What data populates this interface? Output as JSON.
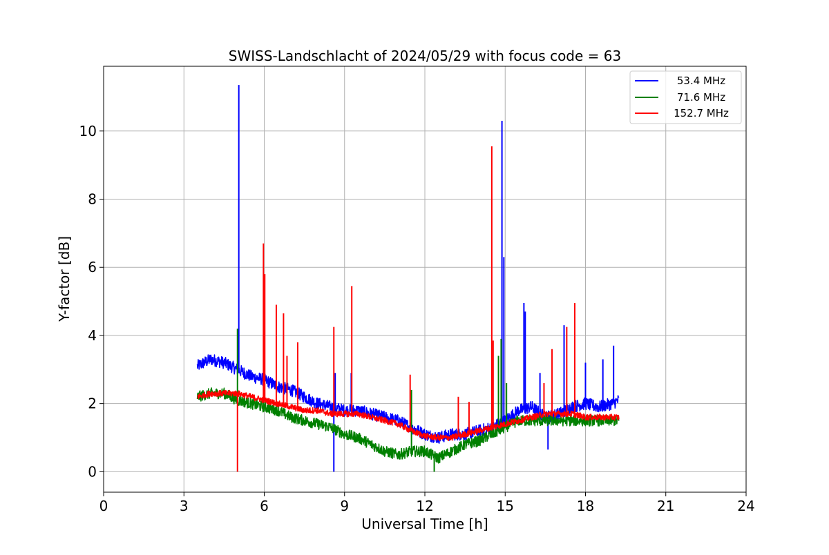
{
  "chart_data": {
    "type": "line",
    "title": "SWISS-Landschlacht of 2024/05/29 with focus code = 63",
    "xlabel": "Universal Time [h]",
    "ylabel": "Y-factor [dB]",
    "xlim": [
      0,
      24
    ],
    "ylim": [
      -0.6,
      11.9
    ],
    "xticks": [
      0,
      3,
      6,
      9,
      12,
      15,
      18,
      21,
      24
    ],
    "yticks": [
      0,
      2,
      4,
      6,
      8,
      10
    ],
    "grid": true,
    "legend_position": "top-right",
    "series": [
      {
        "name": "53.4 MHz",
        "color": "#0000ff",
        "baseline": [
          [
            3.5,
            3.1
          ],
          [
            4.0,
            3.3
          ],
          [
            4.5,
            3.2
          ],
          [
            5.0,
            3.0
          ],
          [
            5.5,
            2.8
          ],
          [
            6.0,
            2.7
          ],
          [
            6.5,
            2.5
          ],
          [
            7.0,
            2.4
          ],
          [
            7.5,
            2.2
          ],
          [
            8.0,
            2.0
          ],
          [
            8.5,
            1.9
          ],
          [
            9.0,
            1.8
          ],
          [
            9.5,
            1.8
          ],
          [
            10.0,
            1.7
          ],
          [
            10.5,
            1.6
          ],
          [
            11.0,
            1.5
          ],
          [
            11.5,
            1.3
          ],
          [
            12.0,
            1.1
          ],
          [
            12.5,
            1.0
          ],
          [
            13.0,
            1.1
          ],
          [
            13.5,
            1.1
          ],
          [
            14.0,
            1.2
          ],
          [
            14.5,
            1.3
          ],
          [
            15.0,
            1.5
          ],
          [
            15.5,
            1.8
          ],
          [
            16.0,
            1.9
          ],
          [
            16.5,
            1.6
          ],
          [
            17.0,
            1.7
          ],
          [
            17.5,
            1.9
          ],
          [
            18.0,
            2.0
          ],
          [
            18.5,
            1.9
          ],
          [
            19.0,
            2.0
          ],
          [
            19.25,
            2.1
          ]
        ],
        "noise": 0.18,
        "spikes": [
          [
            5.05,
            11.35
          ],
          [
            8.6,
            0.0
          ],
          [
            8.65,
            2.9
          ],
          [
            9.25,
            2.9
          ],
          [
            14.88,
            10.3
          ],
          [
            14.95,
            6.3
          ],
          [
            15.7,
            4.95
          ],
          [
            15.75,
            4.7
          ],
          [
            16.3,
            2.9
          ],
          [
            16.6,
            0.65
          ],
          [
            17.2,
            4.3
          ],
          [
            18.0,
            3.2
          ],
          [
            18.65,
            3.3
          ],
          [
            19.05,
            3.7
          ]
        ]
      },
      {
        "name": "71.6 MHz",
        "color": "#008000",
        "baseline": [
          [
            3.5,
            2.2
          ],
          [
            4.0,
            2.3
          ],
          [
            4.5,
            2.3
          ],
          [
            5.0,
            2.1
          ],
          [
            5.5,
            2.0
          ],
          [
            6.0,
            1.9
          ],
          [
            6.5,
            1.8
          ],
          [
            7.0,
            1.6
          ],
          [
            7.5,
            1.5
          ],
          [
            8.0,
            1.4
          ],
          [
            8.5,
            1.3
          ],
          [
            9.0,
            1.1
          ],
          [
            9.5,
            1.0
          ],
          [
            10.0,
            0.8
          ],
          [
            10.5,
            0.6
          ],
          [
            11.0,
            0.5
          ],
          [
            11.5,
            0.6
          ],
          [
            12.0,
            0.6
          ],
          [
            12.5,
            0.4
          ],
          [
            13.0,
            0.6
          ],
          [
            13.5,
            0.8
          ],
          [
            14.0,
            0.9
          ],
          [
            14.5,
            1.1
          ],
          [
            15.0,
            1.3
          ],
          [
            15.5,
            1.5
          ],
          [
            16.0,
            1.5
          ],
          [
            16.5,
            1.5
          ],
          [
            17.0,
            1.5
          ],
          [
            17.5,
            1.5
          ],
          [
            18.0,
            1.5
          ],
          [
            18.5,
            1.5
          ],
          [
            19.0,
            1.5
          ],
          [
            19.25,
            1.5
          ]
        ],
        "noise": 0.16,
        "spikes": [
          [
            5.0,
            4.2
          ],
          [
            11.5,
            2.4
          ],
          [
            12.35,
            0.0
          ],
          [
            14.75,
            3.4
          ],
          [
            14.85,
            3.9
          ],
          [
            15.05,
            2.6
          ]
        ]
      },
      {
        "name": "152.7 MHz",
        "color": "#ff0000",
        "baseline": [
          [
            3.5,
            2.2
          ],
          [
            4.0,
            2.3
          ],
          [
            4.5,
            2.3
          ],
          [
            5.0,
            2.3
          ],
          [
            5.5,
            2.2
          ],
          [
            6.0,
            2.1
          ],
          [
            6.5,
            2.0
          ],
          [
            7.0,
            1.9
          ],
          [
            7.5,
            1.8
          ],
          [
            8.0,
            1.8
          ],
          [
            8.5,
            1.7
          ],
          [
            9.0,
            1.7
          ],
          [
            9.5,
            1.7
          ],
          [
            10.0,
            1.6
          ],
          [
            10.5,
            1.5
          ],
          [
            11.0,
            1.4
          ],
          [
            11.5,
            1.2
          ],
          [
            12.0,
            1.05
          ],
          [
            12.5,
            1.0
          ],
          [
            13.0,
            1.0
          ],
          [
            13.5,
            1.1
          ],
          [
            14.0,
            1.2
          ],
          [
            14.5,
            1.3
          ],
          [
            15.0,
            1.4
          ],
          [
            15.5,
            1.5
          ],
          [
            16.0,
            1.6
          ],
          [
            16.5,
            1.7
          ],
          [
            17.0,
            1.7
          ],
          [
            17.5,
            1.7
          ],
          [
            18.0,
            1.6
          ],
          [
            18.5,
            1.6
          ],
          [
            19.0,
            1.6
          ],
          [
            19.25,
            1.6
          ]
        ],
        "noise": 0.09,
        "spikes": [
          [
            5.0,
            0.0
          ],
          [
            5.97,
            6.7
          ],
          [
            6.02,
            5.8
          ],
          [
            6.45,
            4.9
          ],
          [
            6.72,
            4.65
          ],
          [
            6.85,
            3.4
          ],
          [
            7.25,
            3.8
          ],
          [
            8.6,
            4.25
          ],
          [
            9.27,
            5.45
          ],
          [
            11.45,
            2.85
          ],
          [
            13.25,
            2.2
          ],
          [
            13.65,
            2.05
          ],
          [
            14.5,
            9.55
          ],
          [
            14.55,
            3.85
          ],
          [
            16.45,
            2.6
          ],
          [
            16.75,
            3.6
          ],
          [
            17.3,
            4.25
          ],
          [
            17.6,
            4.95
          ]
        ]
      }
    ]
  }
}
